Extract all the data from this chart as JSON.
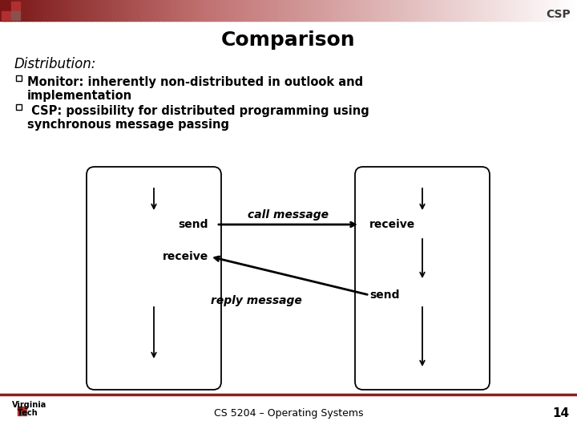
{
  "title": "Comparison",
  "csp_label": "CSP",
  "subtitle": "Distribution:",
  "bullet1_line1": "Monitor: inherently non-distributed in outlook and",
  "bullet1_line2": "implementation",
  "bullet2_line1": " CSP: possibility for distributed programming using",
  "bullet2_line2": "synchronous message passing",
  "call_message": "call message",
  "reply_message": "reply message",
  "send_left": "send",
  "receive_left": "receive",
  "receive_right": "receive",
  "send_right": "send",
  "footer": "CS 5204 – Operating Systems",
  "page_num": "14",
  "bg_color": "#ffffff",
  "text_color": "#000000",
  "title_color": "#000000",
  "header_dark": "#7a1515",
  "header_mid": "#c07070",
  "footer_line_color": "#8b2020",
  "bullet_text_color": "#000000"
}
